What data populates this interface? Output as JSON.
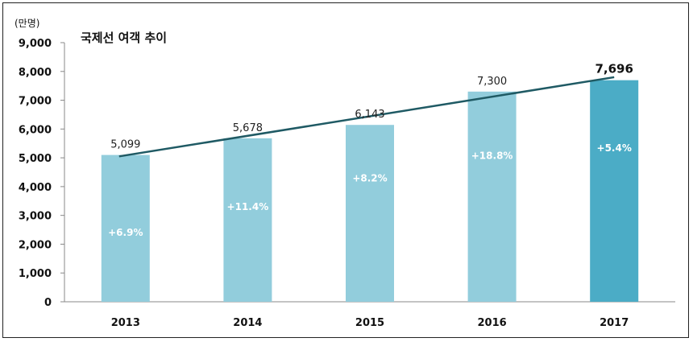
{
  "chart_data": {
    "type": "bar",
    "title": "국제선 여객 추이",
    "unit_label": "(만명)",
    "categories": [
      "2013",
      "2014",
      "2015",
      "2016",
      "2017"
    ],
    "values": [
      5099,
      5678,
      6143,
      7300,
      7696
    ],
    "value_labels": [
      "5,099",
      "5,678",
      "6,143",
      "7,300",
      "7,696"
    ],
    "growth_labels": [
      "+6.9%",
      "+11.4%",
      "+8.2%",
      "+18.8%",
      "+5.4%"
    ],
    "ylim": [
      0,
      9000
    ],
    "ytick_labels": [
      "0",
      "1,000",
      "2,000",
      "3,000",
      "4,000",
      "5,000",
      "6,000",
      "7,000",
      "8,000",
      "9,000"
    ],
    "trendline": {
      "from": 5050,
      "to": 7800
    },
    "grid": false,
    "colors": {
      "bar": "#92cddc",
      "bar_highlight": "#4bacc6",
      "trendline": "#1f5a64"
    }
  }
}
